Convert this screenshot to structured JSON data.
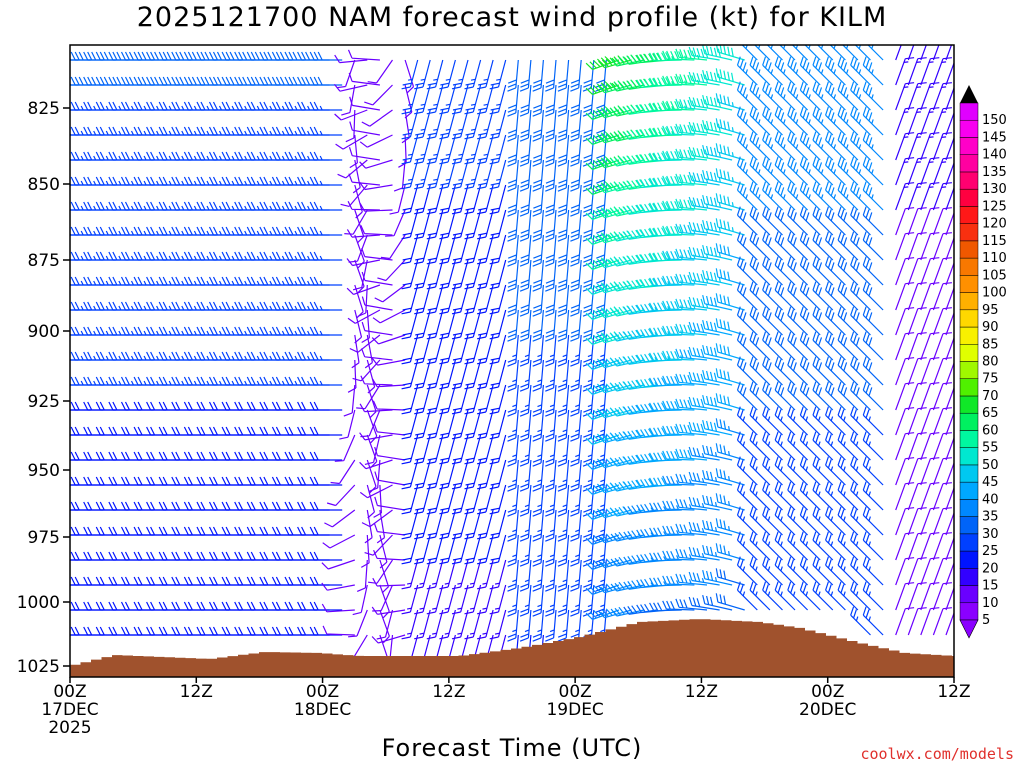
{
  "chart_data": {
    "type": "wind-barb-profile",
    "title": "2025121700 NAM forecast wind profile (kt) for KILM",
    "xlabel": "Forecast Time (UTC)",
    "ylabel": "",
    "credit": "coolwx.com/models",
    "y_axis": {
      "ticks": [
        "825",
        "850",
        "875",
        "900",
        "925",
        "950",
        "975",
        "1000",
        "1025"
      ],
      "direction": "inverted"
    },
    "x_axis": {
      "ticks": [
        {
          "line1": "00Z",
          "line2": "17DEC",
          "line3": "2025"
        },
        {
          "line1": "12Z",
          "line2": "",
          "line3": ""
        },
        {
          "line1": "00Z",
          "line2": "18DEC",
          "line3": ""
        },
        {
          "line1": "12Z",
          "line2": "",
          "line3": ""
        },
        {
          "line1": "00Z",
          "line2": "19DEC",
          "line3": ""
        },
        {
          "line1": "12Z",
          "line2": "",
          "line3": ""
        },
        {
          "line1": "00Z",
          "line2": "20DEC",
          "line3": ""
        },
        {
          "line1": "12Z",
          "line2": "",
          "line3": ""
        }
      ]
    },
    "colorbar": {
      "labels": [
        "5",
        "10",
        "15",
        "20",
        "25",
        "30",
        "35",
        "40",
        "45",
        "50",
        "55",
        "60",
        "65",
        "70",
        "75",
        "80",
        "85",
        "90",
        "95",
        "100",
        "105",
        "110",
        "115",
        "120",
        "125",
        "130",
        "135",
        "140",
        "145",
        "150"
      ],
      "colors": [
        "#8a00ff",
        "#6a00ff",
        "#3200ff",
        "#0014ff",
        "#0040ff",
        "#0064f8",
        "#0088ff",
        "#00a8ff",
        "#00c8f0",
        "#00e8d0",
        "#00f8a0",
        "#00f060",
        "#10e828",
        "#50f000",
        "#a0f800",
        "#e0ff00",
        "#f8f000",
        "#ffd800",
        "#ffb000",
        "#ff9000",
        "#f87800",
        "#f05800",
        "#f83010",
        "#ff1818",
        "#ff0040",
        "#ff0070",
        "#ff00a0",
        "#ff00c8",
        "#f800f0",
        "#e000ff"
      ]
    },
    "terrain_color": "#a0522d",
    "wind_profile_summary": [
      {
        "time": "00Z 17DEC",
        "speed_kt": "15-30",
        "direction": "westerly"
      },
      {
        "time": "12Z 17DEC",
        "speed_kt": "20-30",
        "direction": "westerly"
      },
      {
        "time": "00Z 18DEC",
        "speed_kt": "5-15",
        "direction": "variable"
      },
      {
        "time": "12Z 18DEC",
        "speed_kt": "15-25",
        "direction": "southerly"
      },
      {
        "time": "00Z 19DEC",
        "speed_kt": "20-35",
        "direction": "southerly"
      },
      {
        "time": "06Z 19DEC",
        "speed_kt": "45-65",
        "direction": "westerly"
      },
      {
        "time": "12Z 19DEC",
        "speed_kt": "35-50",
        "direction": "northwesterly"
      },
      {
        "time": "00Z 20DEC",
        "speed_kt": "15-30",
        "direction": "northerly"
      },
      {
        "time": "12Z 20DEC",
        "speed_kt": "5-15",
        "direction": "northeasterly"
      }
    ]
  }
}
